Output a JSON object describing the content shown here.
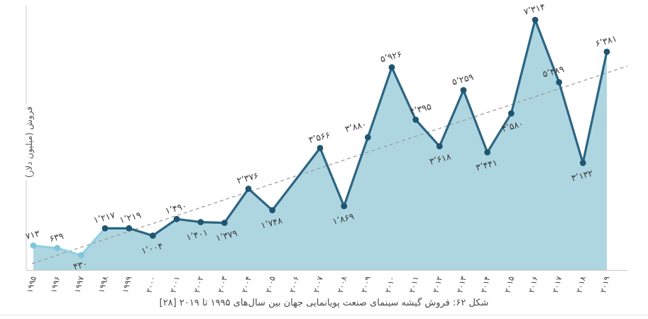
{
  "caption": "شکل ۶۲: فروش گیشه سینمای صنعت پویانمایی جهان بین سال‌های ۱۹۹۵ تا ۲۰۱۹ [۲۸]",
  "chart_data": {
    "type": "area",
    "title": "",
    "xlabel": "",
    "ylabel": "فروش (میلیون دلار)",
    "categories": [
      1995,
      1996,
      1997,
      1998,
      1999,
      2000,
      2001,
      2002,
      2003,
      2004,
      2005,
      2006,
      2007,
      2008,
      2009,
      2010,
      2011,
      2012,
      2013,
      2014,
      2015,
      2016,
      2017,
      2018,
      2019
    ],
    "categories_fa": [
      "۱۹۹۵",
      "۱۹۹۶",
      "۱۹۹۷",
      "۱۹۹۸",
      "۱۹۹۹",
      "۲۰۰۰",
      "۲۰۰۱",
      "۲۰۰۲",
      "۲۰۰۳",
      "۲۰۰۴",
      "۲۰۰۵",
      "۲۰۰۶",
      "۲۰۰۷",
      "۲۰۰۸",
      "۲۰۰۹",
      "۲۰۱۰",
      "۲۰۱۱",
      "۲۰۱۲",
      "۲۰۱۳",
      "۲۰۱۴",
      "۲۰۱۵",
      "۲۰۱۶",
      "۲۰۱۷",
      "۲۰۱۸",
      "۲۰۱۹"
    ],
    "values": [
      713,
      639,
      430,
      1217,
      1219,
      1004,
      1490,
      1401,
      1379,
      2376,
      1748,
      null,
      3566,
      1869,
      3880,
      5926,
      4395,
      3618,
      5259,
      3441,
      4580,
      7314,
      5489,
      3132,
      6381
    ],
    "value_labels_fa": [
      "۷۱۳",
      "۶۳۹",
      "۴۳۰",
      "۱٬۲۱۷",
      "۱٬۲۱۹",
      "۱٬۰۰۴",
      "۱٬۴۹۰",
      "۱٬۴۰۱",
      "۱٬۳۷۹",
      "۲٬۳۷۶",
      "۱٬۷۴۸",
      null,
      "۳٬۵۶۶",
      "۱٬۸۶۹",
      "۳٬۸۸۰",
      "۵٬۹۲۶",
      "۴٬۳۹۵",
      "۳٬۶۱۸",
      "۵٬۲۵۹",
      "۳٬۴۴۱",
      "۴٬۵۸۰",
      "۷٬۳۱۴",
      "۵٬۴۸۹",
      "۳٬۱۳۲",
      "۶٬۳۸۱"
    ],
    "ylim": [
      0,
      7900
    ],
    "grid": false,
    "legend": "none",
    "trendline": {
      "style": "dashed",
      "color": "#999999"
    },
    "colors": {
      "line_dark": "#2d6583",
      "line_light": "#8fcfdf",
      "marker_dark": "#1f5571",
      "marker_light": "#7ec6d9",
      "area_fill": "#aed6e1",
      "axis": "#c9c9c9",
      "label_text": "#3a3a3a",
      "tick_text": "#3f3f3f"
    }
  }
}
